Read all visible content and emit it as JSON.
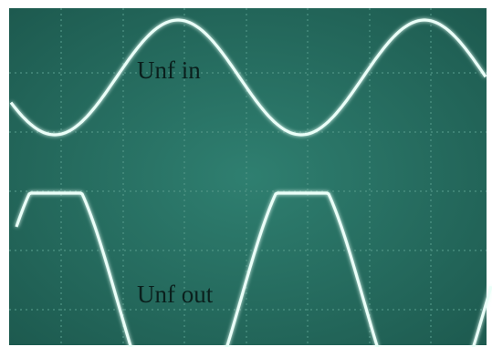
{
  "labels": {
    "input": "Unf in",
    "output": "Unf out"
  }
}
